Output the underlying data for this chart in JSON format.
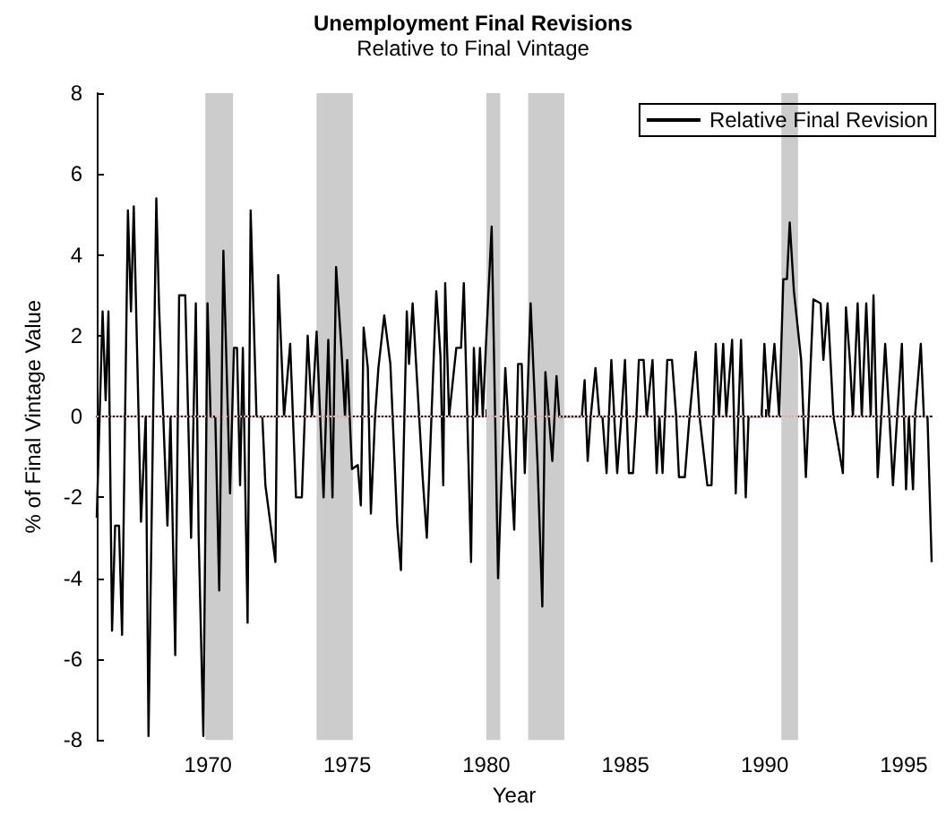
{
  "chart_data": {
    "type": "line",
    "title": "Unemployment Final Revisions",
    "subtitle": "Relative to Final Vintage",
    "xlabel": "Year",
    "ylabel": "% of Final Vintage Value",
    "x": [
      1966.0,
      1966.21,
      1966.32,
      1966.42,
      1966.55,
      1966.66,
      1966.8,
      1966.91,
      1967.12,
      1967.23,
      1967.33,
      1967.59,
      1967.76,
      1967.86,
      1968.14,
      1968.24,
      1968.39,
      1968.54,
      1968.65,
      1968.82,
      1968.96,
      1969.18,
      1969.39,
      1969.56,
      1969.66,
      1969.83,
      1969.98,
      1970.09,
      1970.26,
      1970.4,
      1970.55,
      1970.79,
      1970.93,
      1971.04,
      1971.15,
      1971.25,
      1971.42,
      1971.53,
      1971.74,
      1971.95,
      1972.06,
      1972.42,
      1972.52,
      1972.73,
      1972.95,
      1973.16,
      1973.37,
      1973.58,
      1973.73,
      1973.9,
      1974.15,
      1974.32,
      1974.47,
      1974.6,
      1974.79,
      1974.92,
      1975.0,
      1975.17,
      1975.38,
      1975.49,
      1975.59,
      1975.74,
      1975.85,
      1976.0,
      1976.12,
      1976.33,
      1976.55,
      1976.8,
      1976.93,
      1977.14,
      1977.22,
      1977.35,
      1977.71,
      1977.86,
      1978.2,
      1978.35,
      1978.45,
      1978.52,
      1978.66,
      1978.92,
      1979.09,
      1979.19,
      1979.45,
      1979.55,
      1979.66,
      1979.77,
      1979.87,
      1979.98,
      1980.19,
      1980.42,
      1980.68,
      1980.89,
      1981.0,
      1981.14,
      1981.27,
      1981.38,
      1981.59,
      1981.84,
      1982.01,
      1982.12,
      1982.37,
      1982.52,
      1982.62,
      1983.43,
      1983.53,
      1983.64,
      1983.75,
      1983.92,
      1984.06,
      1984.17,
      1984.32,
      1984.49,
      1984.7,
      1984.85,
      1984.98,
      1985.12,
      1985.27,
      1985.39,
      1985.48,
      1985.65,
      1985.76,
      1985.97,
      1986.12,
      1986.22,
      1986.33,
      1986.5,
      1986.67,
      1986.82,
      1986.92,
      1987.13,
      1987.3,
      1987.52,
      1987.66,
      1987.94,
      1988.09,
      1988.24,
      1988.36,
      1988.51,
      1988.62,
      1988.83,
      1988.96,
      1989.15,
      1989.32,
      1989.42,
      1989.89,
      1989.99,
      1990.14,
      1990.35,
      1990.52,
      1990.67,
      1990.8,
      1990.9,
      1991.05,
      1991.31,
      1991.48,
      1991.75,
      1992.01,
      1992.11,
      1992.26,
      1992.47,
      1992.81,
      1992.92,
      1993.06,
      1993.17,
      1993.34,
      1993.49,
      1993.65,
      1993.81,
      1993.91,
      1994.06,
      1994.19,
      1994.33,
      1994.48,
      1994.61,
      1994.76,
      1994.93,
      1995.08,
      1995.18,
      1995.33,
      1995.4,
      1995.61,
      1995.72,
      1995.85,
      1996.0
    ],
    "series": [
      {
        "name": "Relative Final Revision",
        "color": "#000000",
        "values": [
          -2.5,
          2.6,
          0.4,
          2.6,
          -5.3,
          -2.7,
          -2.7,
          -5.4,
          5.1,
          2.6,
          5.2,
          -2.6,
          0,
          -7.9,
          5.4,
          2.7,
          0,
          -2.7,
          0,
          -5.9,
          3.0,
          3.0,
          -3.0,
          2.8,
          -2.9,
          -7.9,
          2.8,
          0,
          0,
          -4.3,
          4.1,
          -1.9,
          1.7,
          1.7,
          -1.7,
          1.7,
          -5.1,
          5.1,
          0,
          0,
          -1.7,
          -3.6,
          3.5,
          0,
          1.8,
          -2.0,
          -2.0,
          2.0,
          0,
          2.1,
          -2.0,
          1.9,
          -2.0,
          3.7,
          1.7,
          0,
          1.4,
          -1.3,
          -1.2,
          -2.2,
          2.2,
          1.2,
          -2.4,
          0,
          1.2,
          2.5,
          1.3,
          -2.7,
          -3.8,
          2.6,
          1.3,
          2.8,
          -1.5,
          -3.0,
          3.1,
          1.5,
          -1.7,
          3.3,
          0,
          1.7,
          1.7,
          3.3,
          -3.6,
          1.7,
          0,
          1.7,
          0,
          1.7,
          4.7,
          -4.0,
          1.2,
          -1.4,
          -2.8,
          1.3,
          1.3,
          -1.4,
          2.8,
          -1.2,
          -4.7,
          1.1,
          -1.1,
          1.0,
          0,
          0,
          0.9,
          -1.1,
          0,
          1.2,
          0,
          0,
          -1.4,
          1.4,
          -1.4,
          0,
          1.4,
          -1.4,
          -1.4,
          0,
          1.4,
          1.4,
          0,
          1.4,
          -1.4,
          0,
          -1.4,
          1.4,
          1.4,
          0,
          -1.5,
          -1.5,
          0,
          1.6,
          0,
          -1.7,
          -1.7,
          1.8,
          0,
          1.8,
          0,
          1.9,
          -1.9,
          1.9,
          -2.0,
          0,
          0,
          1.8,
          0,
          1.8,
          0,
          3.4,
          3.4,
          4.8,
          3.1,
          1.4,
          -1.5,
          2.9,
          2.8,
          1.4,
          2.8,
          0,
          -1.4,
          2.7,
          1.4,
          0,
          2.8,
          0,
          2.8,
          0,
          3.0,
          -1.5,
          0,
          1.8,
          0,
          -1.7,
          0,
          1.8,
          -1.8,
          0,
          -1.8,
          0,
          1.8,
          0,
          0,
          -3.6
        ]
      }
    ],
    "xlim": [
      1966,
      1996
    ],
    "xticks": [
      1970,
      1975,
      1980,
      1985,
      1990,
      1995
    ],
    "ylim": [
      -8,
      8
    ],
    "yticks": [
      -8,
      -6,
      -4,
      -2,
      0,
      2,
      4,
      6,
      8
    ],
    "bands": [
      {
        "axis": "x",
        "from": 1969.9,
        "to": 1970.9,
        "color": "#cccccc"
      },
      {
        "axis": "x",
        "from": 1973.9,
        "to": 1975.2,
        "color": "#cccccc"
      },
      {
        "axis": "x",
        "from": 1980.0,
        "to": 1980.5,
        "color": "#cccccc"
      },
      {
        "axis": "x",
        "from": 1981.5,
        "to": 1982.8,
        "color": "#cccccc"
      },
      {
        "axis": "x",
        "from": 1990.6,
        "to": 1991.2,
        "color": "#cccccc"
      }
    ],
    "ref_lines": [
      {
        "axis": "y",
        "value": 0,
        "color": "#f4a0a0",
        "line_style": "dotted"
      }
    ],
    "grid": false,
    "legend": "top right",
    "marker": "none",
    "line_style": "solid"
  }
}
